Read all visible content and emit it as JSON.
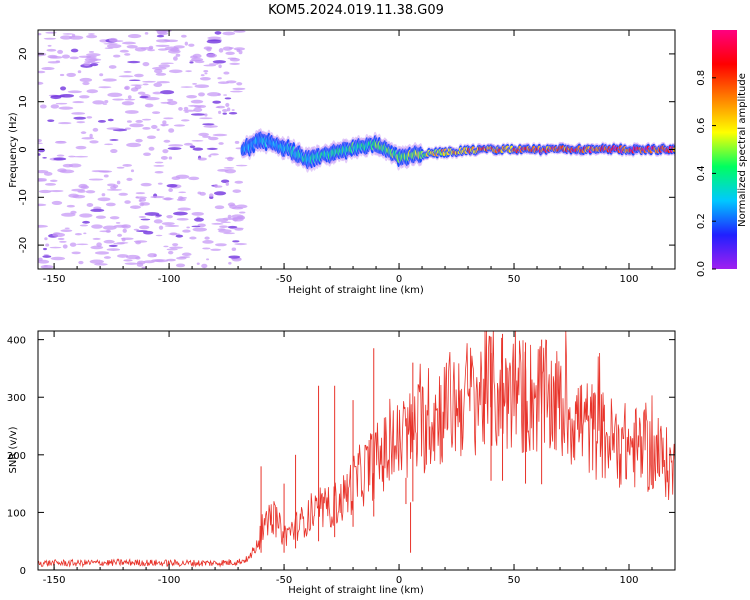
{
  "title": "KOM5.2024.019.11.38.G09",
  "colors": {
    "frame": "#000000",
    "snr_line": "#e8332a",
    "noise_purple": "#c79af5",
    "noise_dark": "#7a3fe0"
  },
  "chart_data": [
    {
      "type": "heatmap",
      "xlabel": "Height of straight line (km)",
      "ylabel": "Frequency (Hz)",
      "xlim": [
        -157,
        120
      ],
      "ylim": [
        -25,
        25
      ],
      "xticks": [
        -150,
        -100,
        -50,
        0,
        50,
        100
      ],
      "xtick_labels": [
        "-150",
        "-100",
        "-50",
        "0",
        "50",
        "100"
      ],
      "yticks": [
        -20,
        -10,
        0,
        10,
        20
      ],
      "ytick_labels": [
        "-20",
        "-10",
        "0",
        "10",
        "20"
      ],
      "colorbar": {
        "label": "Normalized spectral amplitude",
        "range": [
          0,
          1
        ],
        "ticks": [
          0.0,
          0.2,
          0.4,
          0.6,
          0.8
        ],
        "tick_labels": [
          "0.0",
          "0.2",
          "0.4",
          "0.6",
          "0.8"
        ],
        "colormap": [
          "#a020f0",
          "#2020ff",
          "#00c8ff",
          "#00ff60",
          "#ffff00",
          "#ff8000",
          "#ff0000",
          "#ff0080"
        ]
      },
      "noise_region_x": [
        -157,
        -68
      ],
      "signal_track": {
        "x": [
          -68,
          -60,
          -50,
          -40,
          -30,
          -20,
          -10,
          0,
          10,
          20,
          40,
          60,
          80,
          100,
          120
        ],
        "freq": [
          0,
          2,
          0.5,
          -2,
          -1,
          0.5,
          1,
          -1.5,
          -1,
          -0.5,
          0,
          0,
          0,
          0,
          0
        ],
        "amplitude": [
          0.25,
          0.3,
          0.3,
          0.35,
          0.4,
          0.45,
          0.45,
          0.55,
          0.55,
          0.7,
          0.8,
          0.85,
          0.9,
          0.95,
          0.9
        ]
      }
    },
    {
      "type": "line",
      "xlabel": "Height of straight line (km)",
      "ylabel": "SNR (v/v)",
      "xlim": [
        -157,
        120
      ],
      "ylim": [
        0,
        415
      ],
      "xticks": [
        -150,
        -100,
        -50,
        0,
        50,
        100
      ],
      "xtick_labels": [
        "-150",
        "-100",
        "-50",
        "0",
        "50",
        "100"
      ],
      "yticks": [
        0,
        100,
        200,
        300,
        400
      ],
      "ytick_labels": [
        "0",
        "100",
        "200",
        "300",
        "400"
      ],
      "series": [
        {
          "x": [
            -157,
            -140,
            -120,
            -100,
            -80,
            -70,
            -65,
            -60,
            -55,
            -50,
            -45,
            -40,
            -35,
            -30,
            -25,
            -20,
            -15,
            -10,
            -5,
            0,
            5,
            10,
            15,
            20,
            25,
            30,
            35,
            40,
            45,
            50,
            55,
            60,
            65,
            70,
            75,
            80,
            85,
            90,
            95,
            100,
            105,
            110,
            115,
            120
          ],
          "y": [
            12,
            12,
            13,
            12,
            12,
            14,
            20,
            60,
            95,
            60,
            75,
            90,
            100,
            110,
            120,
            150,
            170,
            190,
            205,
            220,
            235,
            250,
            265,
            280,
            290,
            300,
            305,
            310,
            310,
            305,
            300,
            300,
            295,
            285,
            270,
            255,
            240,
            230,
            220,
            215,
            210,
            200,
            190,
            170
          ],
          "spikes": [
            {
              "x": -60,
              "y": 180
            },
            {
              "x": -50,
              "y": 150
            },
            {
              "x": -45,
              "y": 200
            },
            {
              "x": -35,
              "y": 320
            },
            {
              "x": -28,
              "y": 320
            },
            {
              "x": -20,
              "y": 295
            },
            {
              "x": -11,
              "y": 385
            },
            {
              "x": 6,
              "y": 360
            },
            {
              "x": 40,
              "y": 405
            },
            {
              "x": 45,
              "y": 410
            },
            {
              "x": 55,
              "y": 395
            },
            {
              "x": 62,
              "y": 400
            },
            {
              "x": 3,
              "y": 160
            },
            {
              "x": 5,
              "y": 30
            }
          ]
        }
      ]
    }
  ]
}
